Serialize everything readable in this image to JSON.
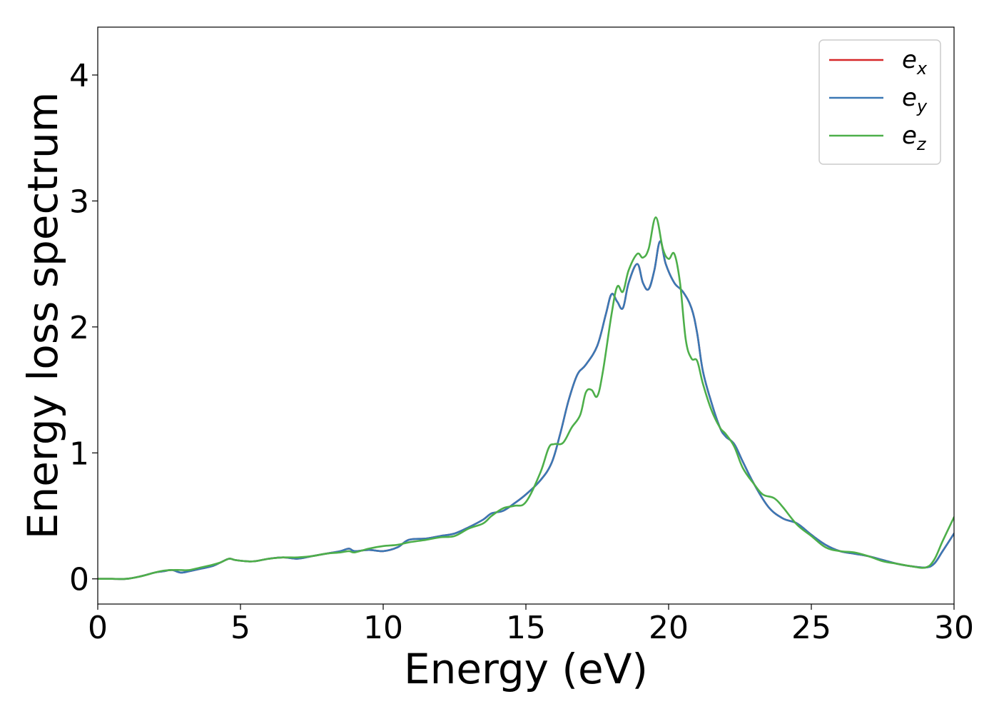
{
  "chart_data": {
    "type": "line",
    "title": "",
    "xlabel": "Energy (eV)",
    "ylabel": "Energy loss spectrum",
    "xlim": [
      0,
      30
    ],
    "ylim": [
      -0.2,
      4.38
    ],
    "xticks": [
      0,
      5,
      10,
      15,
      20,
      25,
      30
    ],
    "xtick_labels": [
      "0",
      "5",
      "10",
      "15",
      "20",
      "25",
      "30"
    ],
    "yticks": [
      0,
      1,
      2,
      3,
      4
    ],
    "ytick_labels": [
      "0",
      "1",
      "2",
      "3",
      "4"
    ],
    "grid": false,
    "legend_position": "top-right",
    "series": [
      {
        "name": "e",
        "subscript": "x",
        "color": "#d62728",
        "x": [
          0,
          0.5,
          1.0,
          1.5,
          2.0,
          2.3,
          2.6,
          2.9,
          3.2,
          3.6,
          4.0,
          4.3,
          4.6,
          4.8,
          5.2,
          5.5,
          6.0,
          6.5,
          7.0,
          7.5,
          8.0,
          8.5,
          8.8,
          9.0,
          9.5,
          10.0,
          10.5,
          10.9,
          11.5,
          12.0,
          12.5,
          13.0,
          13.5,
          13.8,
          14.2,
          14.6,
          15.0,
          15.5,
          15.9,
          16.2,
          16.5,
          16.8,
          17.1,
          17.5,
          17.8,
          18.0,
          18.2,
          18.4,
          18.6,
          18.9,
          19.1,
          19.3,
          19.5,
          19.7,
          19.9,
          20.2,
          20.5,
          20.8,
          21.0,
          21.2,
          21.5,
          21.8,
          22.0,
          22.3,
          22.6,
          23.0,
          23.5,
          24.0,
          24.5,
          25.0,
          25.5,
          26.0,
          26.5,
          27.0,
          27.5,
          28.0,
          28.5,
          29.0,
          29.3,
          29.6,
          30.0
        ],
        "values": [
          0.0,
          0.0,
          0.0,
          0.02,
          0.05,
          0.06,
          0.07,
          0.05,
          0.06,
          0.08,
          0.1,
          0.13,
          0.16,
          0.15,
          0.14,
          0.14,
          0.16,
          0.17,
          0.16,
          0.18,
          0.2,
          0.22,
          0.24,
          0.22,
          0.23,
          0.22,
          0.25,
          0.31,
          0.32,
          0.34,
          0.36,
          0.41,
          0.47,
          0.52,
          0.54,
          0.6,
          0.67,
          0.78,
          0.92,
          1.15,
          1.42,
          1.62,
          1.7,
          1.85,
          2.1,
          2.26,
          2.2,
          2.15,
          2.35,
          2.5,
          2.35,
          2.3,
          2.45,
          2.68,
          2.5,
          2.35,
          2.28,
          2.15,
          1.95,
          1.65,
          1.4,
          1.2,
          1.13,
          1.07,
          0.93,
          0.75,
          0.57,
          0.48,
          0.44,
          0.35,
          0.27,
          0.22,
          0.2,
          0.18,
          0.15,
          0.12,
          0.1,
          0.09,
          0.12,
          0.22,
          0.36
        ]
      },
      {
        "name": "e",
        "subscript": "y",
        "color": "#3a78b5",
        "x": [
          0,
          0.5,
          1.0,
          1.5,
          2.0,
          2.3,
          2.6,
          2.9,
          3.2,
          3.6,
          4.0,
          4.3,
          4.6,
          4.8,
          5.2,
          5.5,
          6.0,
          6.5,
          7.0,
          7.5,
          8.0,
          8.5,
          8.8,
          9.0,
          9.5,
          10.0,
          10.5,
          10.9,
          11.5,
          12.0,
          12.5,
          13.0,
          13.5,
          13.8,
          14.2,
          14.6,
          15.0,
          15.5,
          15.9,
          16.2,
          16.5,
          16.8,
          17.1,
          17.5,
          17.8,
          18.0,
          18.2,
          18.4,
          18.6,
          18.9,
          19.1,
          19.3,
          19.5,
          19.7,
          19.9,
          20.2,
          20.5,
          20.8,
          21.0,
          21.2,
          21.5,
          21.8,
          22.0,
          22.3,
          22.6,
          23.0,
          23.5,
          24.0,
          24.5,
          25.0,
          25.5,
          26.0,
          26.5,
          27.0,
          27.5,
          28.0,
          28.5,
          29.0,
          29.3,
          29.6,
          30.0
        ],
        "values": [
          0.0,
          0.0,
          0.0,
          0.02,
          0.05,
          0.06,
          0.07,
          0.05,
          0.06,
          0.08,
          0.1,
          0.13,
          0.16,
          0.15,
          0.14,
          0.14,
          0.16,
          0.17,
          0.16,
          0.18,
          0.2,
          0.22,
          0.24,
          0.22,
          0.23,
          0.22,
          0.25,
          0.31,
          0.32,
          0.34,
          0.36,
          0.41,
          0.47,
          0.52,
          0.54,
          0.6,
          0.67,
          0.78,
          0.92,
          1.15,
          1.42,
          1.62,
          1.7,
          1.85,
          2.1,
          2.26,
          2.2,
          2.15,
          2.35,
          2.5,
          2.35,
          2.3,
          2.45,
          2.68,
          2.5,
          2.35,
          2.28,
          2.15,
          1.95,
          1.65,
          1.4,
          1.2,
          1.13,
          1.07,
          0.93,
          0.75,
          0.57,
          0.48,
          0.44,
          0.35,
          0.27,
          0.22,
          0.2,
          0.18,
          0.15,
          0.12,
          0.1,
          0.09,
          0.12,
          0.22,
          0.36
        ]
      },
      {
        "name": "e",
        "subscript": "z",
        "color": "#4daf4a",
        "x": [
          0,
          0.5,
          1.0,
          1.5,
          2.0,
          2.3,
          2.6,
          2.9,
          3.2,
          3.6,
          4.0,
          4.3,
          4.6,
          4.8,
          5.2,
          5.5,
          6.0,
          6.5,
          7.0,
          7.5,
          8.0,
          8.5,
          8.8,
          9.0,
          9.5,
          10.0,
          10.5,
          10.9,
          11.5,
          12.0,
          12.5,
          13.0,
          13.5,
          13.8,
          14.2,
          14.6,
          15.0,
          15.5,
          15.8,
          16.0,
          16.3,
          16.6,
          16.9,
          17.1,
          17.3,
          17.5,
          17.7,
          18.0,
          18.2,
          18.4,
          18.6,
          18.9,
          19.1,
          19.3,
          19.55,
          19.8,
          20.0,
          20.2,
          20.4,
          20.6,
          20.8,
          21.0,
          21.2,
          21.5,
          21.8,
          22.0,
          22.3,
          22.6,
          23.0,
          23.3,
          23.7,
          24.0,
          24.5,
          25.0,
          25.5,
          26.0,
          26.5,
          27.0,
          27.5,
          28.0,
          28.5,
          29.0,
          29.3,
          29.6,
          30.0
        ],
        "values": [
          0.0,
          0.0,
          0.0,
          0.02,
          0.05,
          0.065,
          0.07,
          0.07,
          0.07,
          0.09,
          0.11,
          0.13,
          0.16,
          0.15,
          0.14,
          0.14,
          0.16,
          0.17,
          0.17,
          0.18,
          0.2,
          0.21,
          0.22,
          0.21,
          0.24,
          0.26,
          0.27,
          0.29,
          0.31,
          0.33,
          0.34,
          0.4,
          0.44,
          0.5,
          0.56,
          0.58,
          0.61,
          0.84,
          1.04,
          1.07,
          1.08,
          1.2,
          1.3,
          1.48,
          1.5,
          1.45,
          1.65,
          2.1,
          2.32,
          2.28,
          2.45,
          2.58,
          2.55,
          2.62,
          2.87,
          2.62,
          2.54,
          2.58,
          2.35,
          1.9,
          1.75,
          1.73,
          1.55,
          1.34,
          1.2,
          1.15,
          1.05,
          0.88,
          0.75,
          0.67,
          0.64,
          0.57,
          0.43,
          0.34,
          0.25,
          0.22,
          0.21,
          0.18,
          0.14,
          0.12,
          0.1,
          0.09,
          0.15,
          0.3,
          0.49
        ]
      }
    ]
  }
}
